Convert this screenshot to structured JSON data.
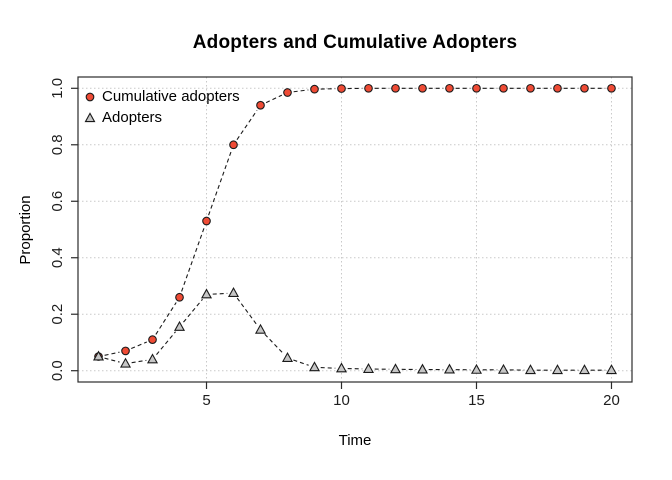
{
  "figure": {
    "title": "Adopters and Cumulative Adopters",
    "xlabel": "Time",
    "ylabel": "Proportion"
  },
  "legend": {
    "position": "top-left",
    "items": [
      {
        "label": "Cumulative adopters",
        "marker": "circle"
      },
      {
        "label": "Adopters",
        "marker": "triangle"
      }
    ]
  },
  "chart_data": {
    "type": "line",
    "title": "Adopters and Cumulative Adopters",
    "xlabel": "Time",
    "ylabel": "Proportion",
    "x": [
      1,
      2,
      3,
      4,
      5,
      6,
      7,
      8,
      9,
      10,
      11,
      12,
      13,
      14,
      15,
      16,
      17,
      18,
      19,
      20
    ],
    "series": [
      {
        "name": "Cumulative adopters",
        "marker": "circle",
        "color": "#ef4b35",
        "line_style": "dashed",
        "values": [
          0.05,
          0.07,
          0.11,
          0.26,
          0.53,
          0.8,
          0.94,
          0.985,
          0.997,
          0.999,
          1.0,
          1.0,
          1.0,
          1.0,
          1.0,
          1.0,
          1.0,
          1.0,
          1.0,
          1.0
        ]
      },
      {
        "name": "Adopters",
        "marker": "triangle",
        "color": "#c6c6c6",
        "line_style": "dashed",
        "values": [
          0.05,
          0.025,
          0.04,
          0.155,
          0.27,
          0.275,
          0.145,
          0.045,
          0.012,
          0.008,
          0.006,
          0.005,
          0.004,
          0.004,
          0.003,
          0.003,
          0.002,
          0.002,
          0.002,
          0.002
        ]
      }
    ],
    "xlim": [
      1,
      20
    ],
    "ylim": [
      0,
      1
    ],
    "x_ticks": [
      5,
      10,
      15,
      20
    ],
    "x_tick_labels": [
      "5",
      "10",
      "15",
      "20"
    ],
    "y_ticks": [
      0,
      0.2,
      0.4,
      0.6,
      0.8,
      1.0
    ],
    "y_tick_labels": [
      "0.0",
      "0.2",
      "0.4",
      "0.6",
      "0.8",
      "1.0"
    ],
    "grid": "dotted",
    "legend_position": "top-left",
    "line_color": "#1a1a1a",
    "grid_color": "#c9c9c9",
    "box_color": "#2b2b2b",
    "tick_label_color": "#1d1d1d"
  }
}
